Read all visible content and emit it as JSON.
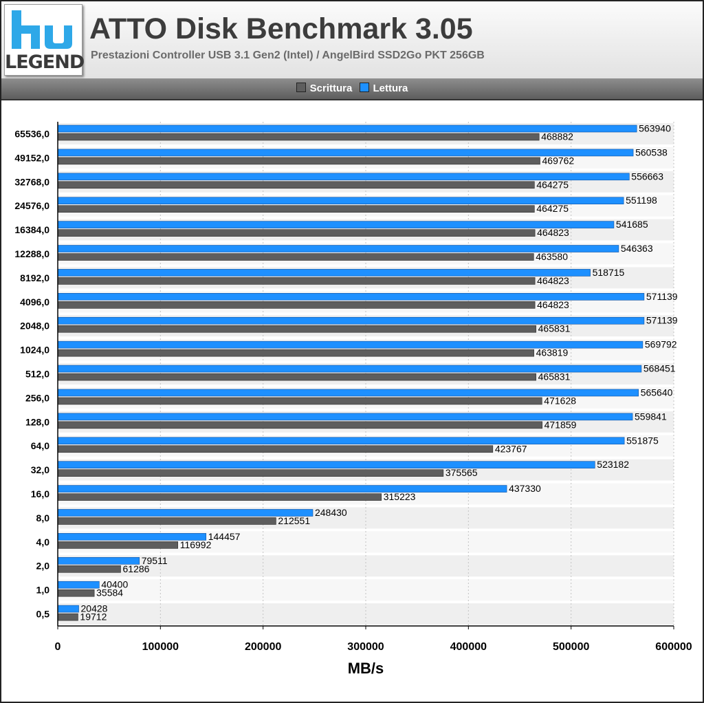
{
  "header": {
    "logo_word": "LEGEND",
    "logo_mark": "hw",
    "title": "ATTO Disk Benchmark 3.05",
    "subtitle": "Prestazioni Controller USB 3.1 Gen2 (Intel) / AngelBird SSD2Go PKT 256GB"
  },
  "colors": {
    "write": "#5e5e5e",
    "read": "#1e90ff",
    "logo_blue": "#2ea8e8"
  },
  "legend": [
    {
      "name": "Scrittura",
      "color": "#5e5e5e"
    },
    {
      "name": "Lettura",
      "color": "#1e90ff"
    }
  ],
  "chart_data": {
    "type": "bar",
    "orientation": "horizontal",
    "title": "ATTO Disk Benchmark 3.05",
    "subtitle": "Prestazioni Controller USB 3.1 Gen2 (Intel) / AngelBird SSD2Go PKT 256GB",
    "xlabel": "MB/s",
    "ylabel": "",
    "xlim": [
      0,
      600000
    ],
    "xticks": [
      0,
      100000,
      200000,
      300000,
      400000,
      500000,
      600000
    ],
    "grid": true,
    "legend_position": "top",
    "categories": [
      "65536,0",
      "49152,0",
      "32768,0",
      "24576,0",
      "16384,0",
      "12288,0",
      "8192,0",
      "4096,0",
      "2048,0",
      "1024,0",
      "512,0",
      "256,0",
      "128,0",
      "64,0",
      "32,0",
      "16,0",
      "8,0",
      "4,0",
      "2,0",
      "1,0",
      "0,5"
    ],
    "series": [
      {
        "name": "Lettura",
        "values": [
          563940,
          560538,
          556663,
          551198,
          541685,
          546363,
          518715,
          571139,
          571139,
          569792,
          568451,
          565640,
          559841,
          551875,
          523182,
          437330,
          248430,
          144457,
          79511,
          40400,
          20428
        ]
      },
      {
        "name": "Scrittura",
        "values": [
          468882,
          469762,
          464275,
          464275,
          464823,
          463580,
          464823,
          464823,
          465831,
          463819,
          465831,
          471628,
          471859,
          423767,
          375565,
          315223,
          212551,
          116992,
          61286,
          35584,
          19712
        ]
      }
    ]
  }
}
